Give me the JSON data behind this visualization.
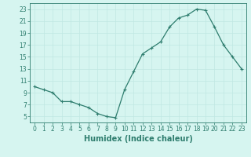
{
  "x": [
    0,
    1,
    2,
    3,
    4,
    5,
    6,
    7,
    8,
    9,
    10,
    11,
    12,
    13,
    14,
    15,
    16,
    17,
    18,
    19,
    20,
    21,
    22,
    23
  ],
  "y": [
    10.0,
    9.5,
    9.0,
    7.5,
    7.5,
    7.0,
    6.5,
    5.5,
    5.0,
    4.8,
    9.5,
    12.5,
    15.5,
    16.5,
    17.5,
    20.0,
    21.5,
    22.0,
    23.0,
    22.8,
    20.0,
    17.0,
    15.0,
    13.0
  ],
  "line_color": "#2e7d6e",
  "marker": "+",
  "marker_size": 3,
  "linewidth": 0.9,
  "xlabel": "Humidex (Indice chaleur)",
  "xlim": [
    -0.5,
    23.5
  ],
  "ylim": [
    4,
    24
  ],
  "yticks": [
    5,
    7,
    9,
    11,
    13,
    15,
    17,
    19,
    21,
    23
  ],
  "xticks": [
    0,
    1,
    2,
    3,
    4,
    5,
    6,
    7,
    8,
    9,
    10,
    11,
    12,
    13,
    14,
    15,
    16,
    17,
    18,
    19,
    20,
    21,
    22,
    23
  ],
  "bg_color": "#d6f5f0",
  "grid_color": "#c0e8e2",
  "tick_label_fontsize": 5.5,
  "xlabel_fontsize": 7.0
}
